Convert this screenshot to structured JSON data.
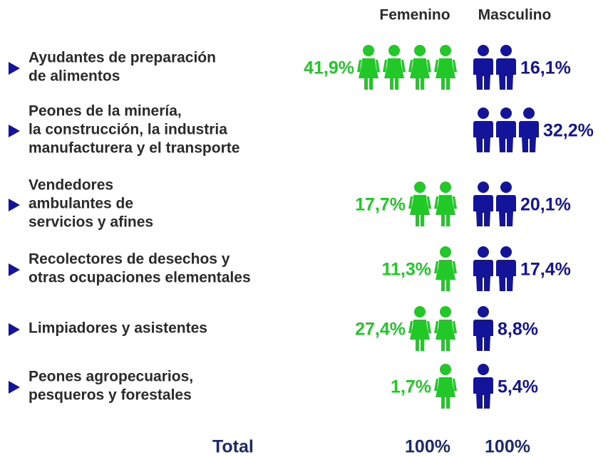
{
  "chart_data": {
    "type": "pictogram",
    "categories": [
      [
        "Ayudantes de preparación",
        "de alimentos"
      ],
      [
        "Peones de la minería,",
        "la construcción, la industria",
        "manufacturera y el transporte"
      ],
      [
        "Vendedores",
        "ambulantes de",
        "servicios y afines"
      ],
      [
        "Recolectores de desechos y",
        "otras ocupaciones elementales"
      ],
      [
        "Limpiadores y asistentes"
      ],
      [
        "Peones agropecuarios,",
        "pesqueros y forestales"
      ]
    ],
    "series": [
      {
        "name": "Femenino",
        "color": "#22c728",
        "icon": "woman",
        "values": [
          41.9,
          null,
          17.7,
          11.3,
          27.4,
          1.7
        ],
        "value_labels": [
          "41,9%",
          null,
          "17,7%",
          "11,3%",
          "27,4%",
          "1,7%"
        ],
        "icons": [
          4,
          0,
          2,
          1,
          2,
          1
        ],
        "total": 100,
        "total_label": "100%"
      },
      {
        "name": "Masculino",
        "color": "#14149a",
        "icon": "man",
        "values": [
          16.1,
          32.2,
          20.1,
          17.4,
          8.8,
          5.4
        ],
        "value_labels": [
          "16,1%",
          "32,2%",
          "20,1%",
          "17,4%",
          "8,8%",
          "5,4%"
        ],
        "icons": [
          2,
          3,
          2,
          2,
          1,
          1
        ],
        "total": 100,
        "total_label": "100%"
      }
    ],
    "total_label": "Total"
  }
}
